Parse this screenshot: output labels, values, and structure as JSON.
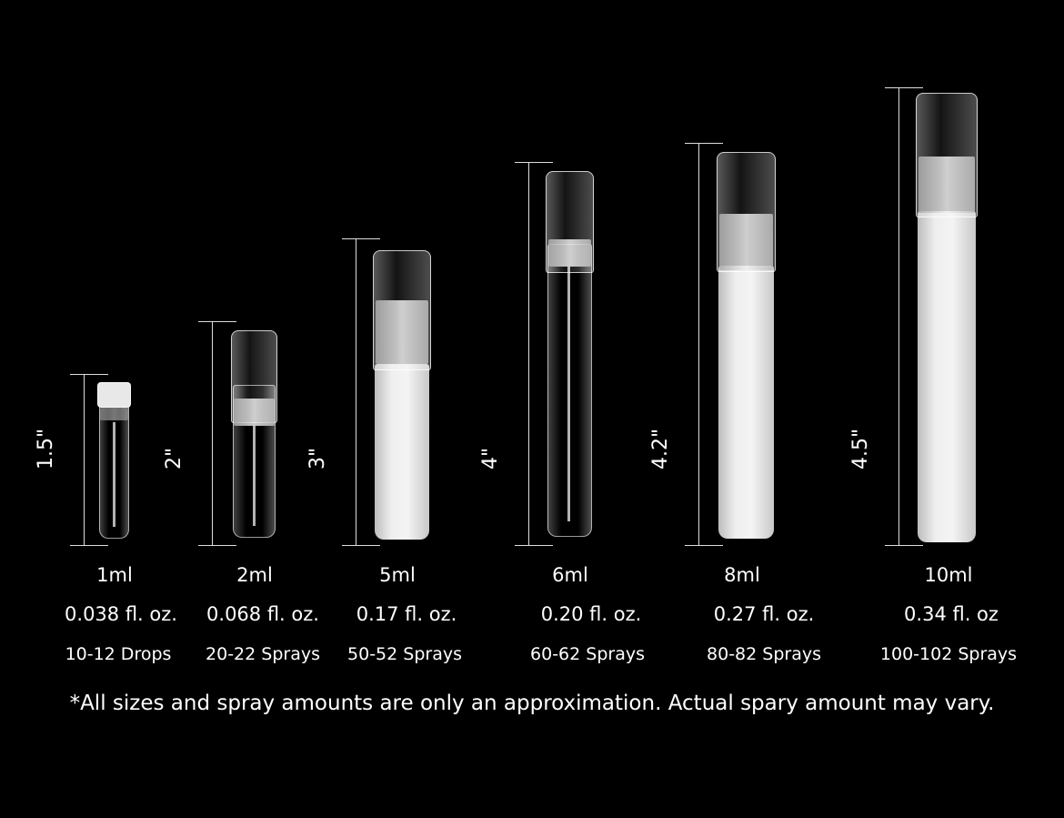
{
  "items": [
    {
      "height_label": "1.5\"",
      "volume": "1ml",
      "fl_oz": "0.038 fl. oz.",
      "amount": "10-12 Drops",
      "finish": "clear"
    },
    {
      "height_label": "2\"",
      "volume": "2ml",
      "fl_oz": "0.068 fl. oz.",
      "amount": "20-22 Sprays",
      "finish": "clear"
    },
    {
      "height_label": "3\"",
      "volume": "5ml",
      "fl_oz": "0.17 fl. oz.",
      "amount": "50-52 Sprays",
      "finish": "frosted"
    },
    {
      "height_label": "4\"",
      "volume": "6ml",
      "fl_oz": "0.20 fl. oz.",
      "amount": "60-62 Sprays",
      "finish": "clear"
    },
    {
      "height_label": "4.2\"",
      "volume": "8ml",
      "fl_oz": "0.27 fl. oz.",
      "amount": "80-82 Sprays",
      "finish": "frosted"
    },
    {
      "height_label": "4.5\"",
      "volume": "10ml",
      "fl_oz": "0.34 fl. oz",
      "amount": "100-102 Sprays",
      "finish": "frosted"
    }
  ],
  "footnote": "*All sizes and spray amounts are only an approximation. Actual spary amount may vary.",
  "colors": {
    "background": "#000000",
    "text": "#ffffff"
  }
}
